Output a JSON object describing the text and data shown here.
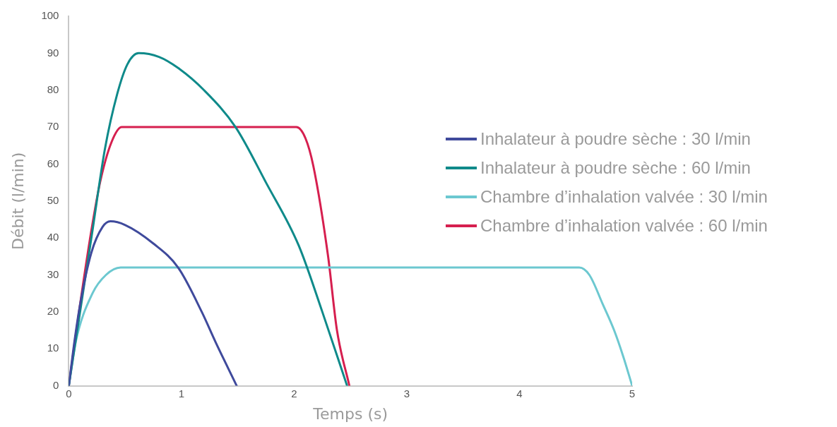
{
  "chart_data": {
    "type": "line",
    "xlabel": "Temps (s)",
    "ylabel": "Débit (l/min)",
    "xlim": [
      0,
      5
    ],
    "ylim": [
      0,
      100
    ],
    "xticks": [
      0,
      1,
      2,
      3,
      4,
      5
    ],
    "yticks": [
      0,
      10,
      20,
      30,
      40,
      50,
      60,
      70,
      80,
      90,
      100
    ],
    "grid": false,
    "legend": "right",
    "marker": "none",
    "line_style": "solid",
    "series": [
      {
        "name": "Inhalateur à poudre sèche : 30 l/min",
        "color": "#3f4a9c",
        "x": [
          0,
          0.05,
          0.1,
          0.2,
          0.3,
          0.37,
          0.5,
          0.75,
          0.97,
          1.18,
          1.3,
          1.49
        ],
        "values": [
          0,
          12,
          22,
          36,
          43,
          44.5,
          43.5,
          38.5,
          32,
          20,
          12,
          0
        ]
      },
      {
        "name": "Inhalateur à poudre sèche : 60 l/min",
        "color": "#0f8a8a",
        "x": [
          0,
          0.1,
          0.21,
          0.32,
          0.43,
          0.52,
          0.62,
          0.8,
          0.97,
          1.2,
          1.48,
          1.75,
          2.04,
          2.25,
          2.47
        ],
        "values": [
          0,
          20,
          42,
          64,
          79,
          87,
          90,
          89,
          86,
          80,
          70,
          55,
          38,
          20,
          0
        ]
      },
      {
        "name": "Chambre d’inhalation valvée : 30 l/min",
        "color": "#6cc8d0",
        "x": [
          0,
          0.06,
          0.21,
          0.33,
          0.46,
          4.53,
          4.62,
          4.74,
          4.84,
          4.92,
          5
        ],
        "values": [
          0,
          11.7,
          25,
          30,
          32,
          32,
          30,
          22,
          15,
          8,
          0
        ]
      },
      {
        "name": "Chambre d’inhalation valvée : 60 l/min",
        "color": "#d61f4f",
        "x": [
          0,
          0.1,
          0.2,
          0.28,
          0.38,
          0.47,
          2.02,
          2.1,
          2.17,
          2.3,
          2.38,
          2.49
        ],
        "values": [
          0,
          22,
          42,
          55.4,
          66,
          70,
          70,
          67,
          59.5,
          35.3,
          15,
          0
        ]
      }
    ]
  }
}
